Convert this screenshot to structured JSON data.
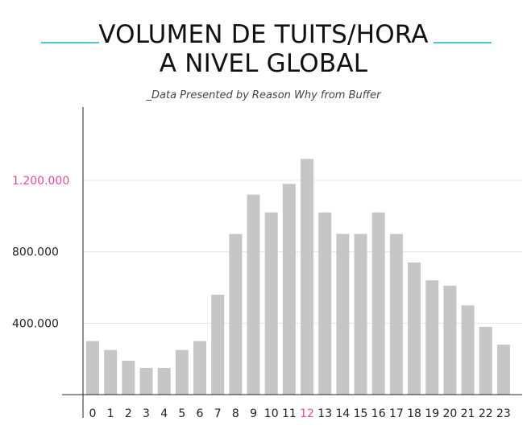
{
  "header": {
    "title_line1": "VOLUMEN DE TUITS/HORA",
    "title_line2": "A NIVEL GLOBAL",
    "subtitle": "_Data Presented by Reason Why from Buffer"
  },
  "colors": {
    "bar": "#c6c6c6",
    "accent": "#e8479a",
    "decoration": "#4fc3e0",
    "grid": "#e4e4e4",
    "axis": "#222222"
  },
  "chart_data": {
    "type": "bar",
    "title": "VOLUMEN DE TUITS/HORA A NIVEL GLOBAL",
    "subtitle": "_Data Presented by Reason Why from Buffer",
    "categories": [
      "0",
      "1",
      "2",
      "3",
      "4",
      "5",
      "6",
      "7",
      "8",
      "9",
      "10",
      "11",
      "12",
      "13",
      "14",
      "15",
      "16",
      "17",
      "18",
      "19",
      "20",
      "21",
      "22",
      "23"
    ],
    "values": [
      300000,
      250000,
      190000,
      150000,
      150000,
      250000,
      300000,
      560000,
      900000,
      1120000,
      1020000,
      1180000,
      1320000,
      1020000,
      900000,
      900000,
      1020000,
      900000,
      740000,
      640000,
      610000,
      500000,
      380000,
      280000
    ],
    "highlight_category": "12",
    "ytick_values": [
      400000,
      800000,
      1200000
    ],
    "ytick_labels": [
      "400.000",
      "800.000",
      "1.200.000"
    ],
    "highlight_ytick": "1.200.000",
    "ylim": [
      -130000,
      1610000
    ],
    "xlabel": "",
    "ylabel": "",
    "grid": true,
    "legend": "none"
  }
}
